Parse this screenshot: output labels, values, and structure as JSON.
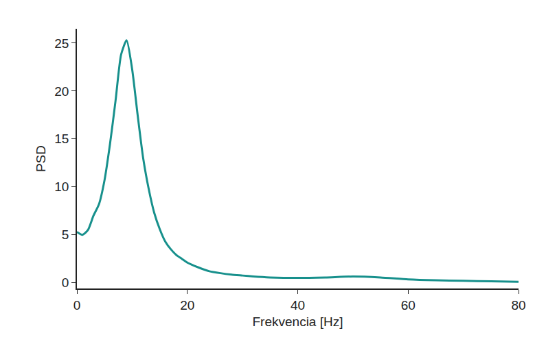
{
  "chart_data": {
    "type": "line",
    "x_label": "Frekvencia [Hz]",
    "y_label": "PSD",
    "x": [
      0,
      1,
      2,
      3,
      4,
      5,
      6,
      7,
      8,
      9,
      10,
      11,
      12,
      13,
      14,
      15,
      16,
      17,
      18,
      19,
      20,
      22,
      24,
      26,
      28,
      30,
      32,
      35,
      40,
      45,
      50,
      55,
      60,
      65,
      70,
      75,
      80
    ],
    "values": [
      5.3,
      5.0,
      5.5,
      7.0,
      8.2,
      10.7,
      14.5,
      19.0,
      23.8,
      25.3,
      22.3,
      17.5,
      13.0,
      9.8,
      7.3,
      5.6,
      4.3,
      3.5,
      2.9,
      2.5,
      2.1,
      1.6,
      1.2,
      1.0,
      0.85,
      0.75,
      0.65,
      0.55,
      0.5,
      0.55,
      0.65,
      0.55,
      0.35,
      0.25,
      0.2,
      0.15,
      0.1
    ],
    "color": "#17908c",
    "xlim": [
      0,
      80
    ],
    "xticks": [
      0,
      20,
      40,
      60,
      80
    ],
    "ylim": [
      -0.6,
      26.5
    ],
    "yticks": [
      0,
      5,
      10,
      15,
      20,
      25
    ],
    "grid": false
  }
}
